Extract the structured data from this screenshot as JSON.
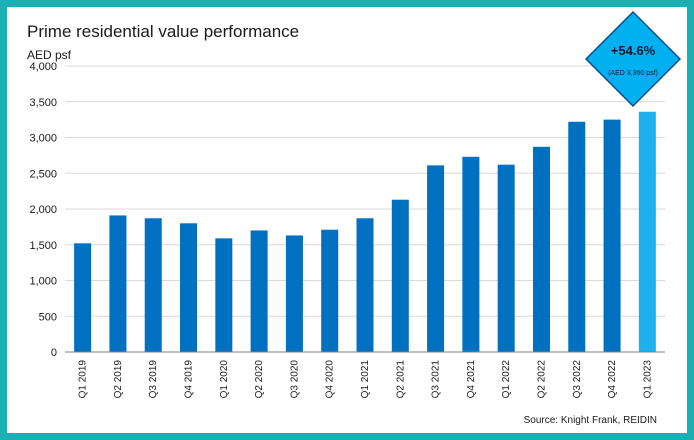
{
  "chart_data": {
    "type": "bar",
    "title": "Prime residential value performance",
    "ylabel": "AED psf",
    "xlabel": "",
    "ylim": [
      0,
      4000
    ],
    "yticks": [
      0,
      500,
      1000,
      1500,
      2000,
      2500,
      3000,
      3500,
      4000
    ],
    "ytick_labels": [
      "0",
      "500",
      "1,000",
      "1,500",
      "2,000",
      "2,500",
      "3,000",
      "3,500",
      "4,000"
    ],
    "grid": true,
    "categories": [
      "Q1 2019",
      "Q2 2019",
      "Q3 2019",
      "Q4 2019",
      "Q1 2020",
      "Q2 2020",
      "Q3 2020",
      "Q4 2020",
      "Q1 2021",
      "Q2 2021",
      "Q3 2021",
      "Q4 2021",
      "Q1 2022",
      "Q2 2022",
      "Q3 2022",
      "Q4 2022",
      "Q1 2023"
    ],
    "values": [
      1520,
      1910,
      1870,
      1800,
      1590,
      1700,
      1630,
      1710,
      1870,
      2130,
      2610,
      2730,
      2620,
      2870,
      3220,
      3250,
      3360
    ],
    "colors": {
      "bar": "#0070c0",
      "highlight": "#1fb0ee",
      "grid": "#d9d9d9",
      "axis": "#7f7f7f"
    },
    "highlight_index": 16,
    "callout": {
      "main": "+54.6%",
      "sub": "(AED 3,360 psf)",
      "fill": "#00b0f0",
      "stroke": "#0a4f8a"
    },
    "source": "Source: Knight Frank, REIDIN"
  }
}
